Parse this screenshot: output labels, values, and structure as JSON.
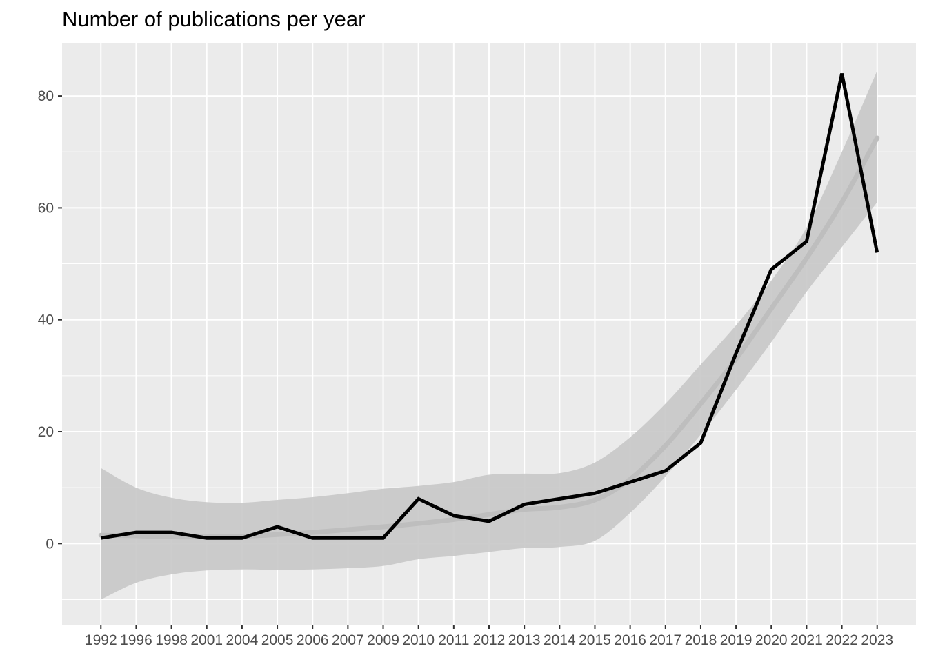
{
  "chart_data": {
    "type": "line",
    "title": "Number of publications per year",
    "xlabel": "",
    "ylabel": "",
    "categories": [
      "1992",
      "1996",
      "1998",
      "2001",
      "2004",
      "2005",
      "2006",
      "2007",
      "2009",
      "2010",
      "2011",
      "2012",
      "2013",
      "2014",
      "2015",
      "2016",
      "2017",
      "2018",
      "2019",
      "2020",
      "2021",
      "2022",
      "2023"
    ],
    "series": [
      {
        "values": [
          1,
          2,
          2,
          1,
          1,
          3,
          1,
          1,
          1,
          8,
          5,
          4,
          7,
          8,
          9,
          11,
          13,
          18,
          34,
          49,
          54,
          84,
          52
        ]
      }
    ],
    "smooth": {
      "fit": [
        1.5,
        1.4,
        1.2,
        1.2,
        1.3,
        1.6,
        2.0,
        2.5,
        3.0,
        3.6,
        4.3,
        5.2,
        6.1,
        6.5,
        7.8,
        11.5,
        17.5,
        25.0,
        33.0,
        42.0,
        51.0,
        61.0,
        72.5
      ],
      "lower": [
        -10.0,
        -7.0,
        -5.5,
        -4.8,
        -4.6,
        -4.7,
        -4.6,
        -4.4,
        -4.0,
        -2.8,
        -2.2,
        -1.5,
        -0.8,
        -0.6,
        0.5,
        5.5,
        12.0,
        19.5,
        27.5,
        36.0,
        45.0,
        53.0,
        61.0
      ],
      "upper": [
        13.5,
        10.0,
        8.2,
        7.4,
        7.3,
        7.8,
        8.3,
        9.0,
        9.8,
        10.3,
        11.0,
        12.3,
        12.5,
        12.6,
        14.5,
        19.0,
        25.0,
        32.0,
        39.0,
        47.0,
        56.5,
        70.0,
        84.5
      ]
    },
    "y_ticks": [
      0,
      20,
      40,
      60,
      80
    ],
    "ylim": [
      -14.5,
      89.5
    ],
    "grid": true,
    "colors": {
      "line": "#000000",
      "smooth": "#bebebe",
      "band": "#c8c8c8",
      "panel": "#ebebeb",
      "grid": "#ffffff"
    }
  }
}
